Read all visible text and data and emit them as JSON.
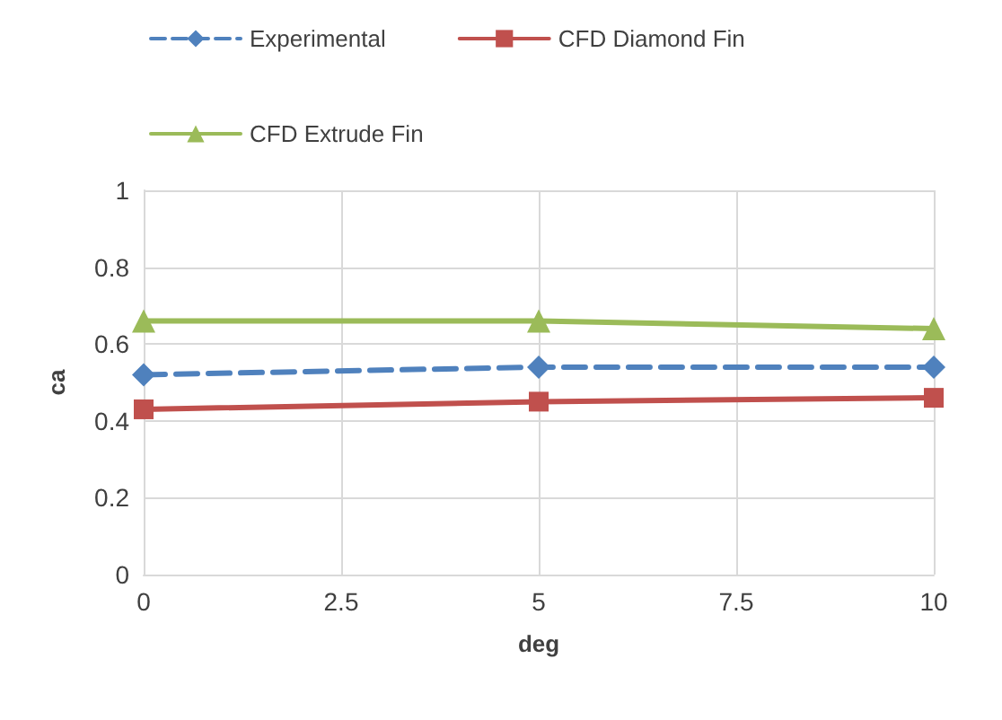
{
  "chart_data": {
    "type": "line",
    "xlabel": "deg",
    "ylabel": "ca",
    "x": [
      0,
      5,
      10
    ],
    "series": [
      {
        "name": "Experimental",
        "color": "#4f81bd",
        "values": [
          0.52,
          0.54,
          0.54
        ],
        "marker": "diamond",
        "line_style": "dashed"
      },
      {
        "name": "CFD Diamond Fin",
        "color": "#c0504d",
        "values": [
          0.43,
          0.45,
          0.46
        ],
        "marker": "square",
        "line_style": "solid"
      },
      {
        "name": "CFD Extrude Fin",
        "color": "#9bbb59",
        "values": [
          0.66,
          0.66,
          0.64
        ],
        "marker": "triangle",
        "line_style": "solid"
      }
    ],
    "xlim": [
      0,
      10
    ],
    "xticks": [
      0,
      2.5,
      5,
      7.5,
      10
    ],
    "ylim": [
      0,
      1
    ],
    "yticks": [
      0,
      0.2,
      0.4,
      0.6,
      0.8,
      1
    ],
    "grid": true,
    "legend": "top"
  }
}
